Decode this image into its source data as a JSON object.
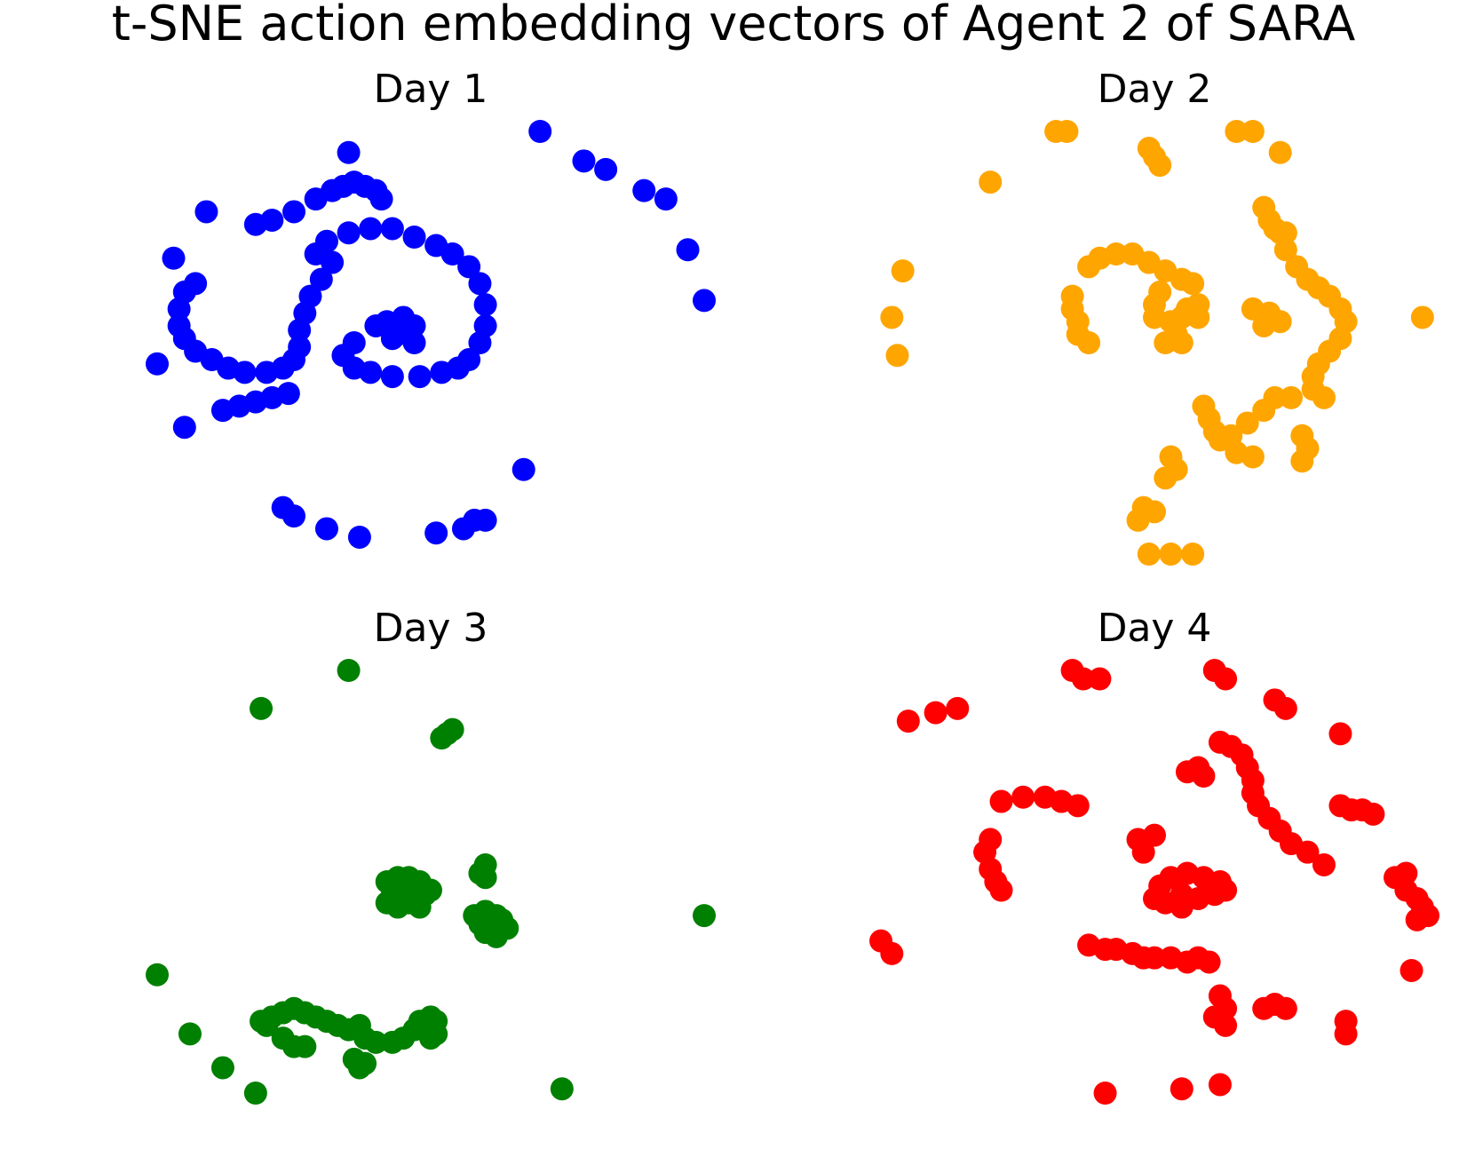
{
  "title": "t-SNE action embedding vectors of Agent 2 of SARA",
  "chart_data": [
    {
      "type": "scatter",
      "title": "Day 1",
      "color": "#0000ff",
      "axes": "off",
      "grid": false,
      "xlim": [
        0,
        100
      ],
      "ylim": [
        0,
        100
      ],
      "points": [
        [
          35,
          95
        ],
        [
          70,
          100
        ],
        [
          78,
          93
        ],
        [
          82,
          91
        ],
        [
          89,
          86
        ],
        [
          93,
          84
        ],
        [
          97,
          72
        ],
        [
          100,
          60
        ],
        [
          9,
          81
        ],
        [
          3,
          70
        ],
        [
          0,
          45
        ],
        [
          5,
          30
        ],
        [
          67,
          20
        ],
        [
          23,
          11
        ],
        [
          25,
          9
        ],
        [
          31,
          6
        ],
        [
          37,
          4
        ],
        [
          51,
          5
        ],
        [
          56,
          6
        ],
        [
          58,
          8
        ],
        [
          60,
          8
        ],
        [
          18,
          78
        ],
        [
          21,
          79
        ],
        [
          25,
          81
        ],
        [
          29,
          84
        ],
        [
          32,
          86
        ],
        [
          34,
          87
        ],
        [
          36,
          88
        ],
        [
          38,
          87
        ],
        [
          40,
          86
        ],
        [
          41,
          84
        ],
        [
          7,
          64
        ],
        [
          5,
          62
        ],
        [
          4,
          58
        ],
        [
          4,
          54
        ],
        [
          5,
          51
        ],
        [
          7,
          48
        ],
        [
          10,
          46
        ],
        [
          13,
          44
        ],
        [
          16,
          43
        ],
        [
          20,
          43
        ],
        [
          23,
          44
        ],
        [
          25,
          46
        ],
        [
          26,
          49
        ],
        [
          26,
          53
        ],
        [
          27,
          57
        ],
        [
          28,
          61
        ],
        [
          30,
          65
        ],
        [
          32,
          69
        ],
        [
          29,
          71
        ],
        [
          31,
          74
        ],
        [
          35,
          76
        ],
        [
          39,
          77
        ],
        [
          43,
          77
        ],
        [
          47,
          75
        ],
        [
          51,
          73
        ],
        [
          54,
          71
        ],
        [
          57,
          68
        ],
        [
          59,
          64
        ],
        [
          60,
          59
        ],
        [
          60,
          54
        ],
        [
          59,
          50
        ],
        [
          57,
          46
        ],
        [
          55,
          44
        ],
        [
          52,
          43
        ],
        [
          48,
          42
        ],
        [
          43,
          42
        ],
        [
          39,
          43
        ],
        [
          36,
          44
        ],
        [
          34,
          47
        ],
        [
          36,
          50
        ],
        [
          40,
          54
        ],
        [
          42,
          55
        ],
        [
          45,
          56
        ],
        [
          47,
          54
        ],
        [
          44,
          52
        ],
        [
          43,
          51
        ],
        [
          47,
          50
        ],
        [
          12,
          34
        ],
        [
          15,
          35
        ],
        [
          18,
          36
        ],
        [
          21,
          37
        ],
        [
          24,
          38
        ]
      ]
    },
    {
      "type": "scatter",
      "title": "Day 2",
      "color": "#ffa500",
      "axes": "off",
      "grid": false,
      "xlim": [
        0,
        100
      ],
      "ylim": [
        0,
        100
      ],
      "points": [
        [
          32,
          100
        ],
        [
          34,
          100
        ],
        [
          49,
          96
        ],
        [
          50,
          94
        ],
        [
          51,
          92
        ],
        [
          65,
          100
        ],
        [
          68,
          100
        ],
        [
          73,
          95
        ],
        [
          20,
          88
        ],
        [
          4,
          67
        ],
        [
          2,
          56
        ],
        [
          3,
          47
        ],
        [
          99,
          56
        ],
        [
          70,
          82
        ],
        [
          71,
          79
        ],
        [
          72,
          77
        ],
        [
          74,
          76
        ],
        [
          38,
          68
        ],
        [
          40,
          70
        ],
        [
          43,
          71
        ],
        [
          46,
          71
        ],
        [
          49,
          69
        ],
        [
          52,
          67
        ],
        [
          55,
          65
        ],
        [
          57,
          64
        ],
        [
          35,
          61
        ],
        [
          35,
          58
        ],
        [
          36,
          55
        ],
        [
          36,
          52
        ],
        [
          38,
          50
        ],
        [
          51,
          62
        ],
        [
          50,
          59
        ],
        [
          50,
          56
        ],
        [
          53,
          55
        ],
        [
          55,
          56
        ],
        [
          56,
          58
        ],
        [
          58,
          59
        ],
        [
          58,
          56
        ],
        [
          54,
          52
        ],
        [
          52,
          50
        ],
        [
          55,
          50
        ],
        [
          73,
          76
        ],
        [
          74,
          72
        ],
        [
          76,
          68
        ],
        [
          78,
          65
        ],
        [
          80,
          63
        ],
        [
          82,
          61
        ],
        [
          84,
          58
        ],
        [
          85,
          55
        ],
        [
          84,
          51
        ],
        [
          82,
          48
        ],
        [
          80,
          45
        ],
        [
          79,
          42
        ],
        [
          79,
          39
        ],
        [
          81,
          37
        ],
        [
          68,
          58
        ],
        [
          71,
          57
        ],
        [
          73,
          55
        ],
        [
          70,
          54
        ],
        [
          59,
          35
        ],
        [
          60,
          32
        ],
        [
          61,
          29
        ],
        [
          62,
          27
        ],
        [
          65,
          24
        ],
        [
          68,
          23
        ],
        [
          64,
          28
        ],
        [
          67,
          31
        ],
        [
          70,
          34
        ],
        [
          72,
          37
        ],
        [
          75,
          37
        ],
        [
          77,
          28
        ],
        [
          78,
          25
        ],
        [
          77,
          22
        ],
        [
          53,
          23
        ],
        [
          54,
          20
        ],
        [
          52,
          18
        ],
        [
          48,
          11
        ],
        [
          50,
          10
        ],
        [
          47,
          8
        ],
        [
          49,
          0
        ],
        [
          53,
          0
        ],
        [
          57,
          0
        ]
      ]
    },
    {
      "type": "scatter",
      "title": "Day 3",
      "color": "#008000",
      "axes": "off",
      "grid": false,
      "xlim": [
        0,
        100
      ],
      "ylim": [
        0,
        100
      ],
      "points": [
        [
          35,
          100
        ],
        [
          19,
          91
        ],
        [
          53,
          85
        ],
        [
          54,
          86
        ],
        [
          52,
          84
        ],
        [
          100,
          42
        ],
        [
          0,
          28
        ],
        [
          6,
          14
        ],
        [
          12,
          6
        ],
        [
          18,
          0
        ],
        [
          74,
          1
        ],
        [
          42,
          50
        ],
        [
          44,
          51
        ],
        [
          46,
          51
        ],
        [
          48,
          50
        ],
        [
          43,
          47
        ],
        [
          45,
          47
        ],
        [
          47,
          47
        ],
        [
          42,
          45
        ],
        [
          44,
          44
        ],
        [
          46,
          45
        ],
        [
          48,
          44
        ],
        [
          49,
          47
        ],
        [
          50,
          48
        ],
        [
          60,
          51
        ],
        [
          60,
          54
        ],
        [
          59,
          52
        ],
        [
          58,
          42
        ],
        [
          60,
          43
        ],
        [
          62,
          42
        ],
        [
          63,
          41
        ],
        [
          59,
          40
        ],
        [
          61,
          39
        ],
        [
          62,
          37
        ],
        [
          60,
          38
        ],
        [
          64,
          39
        ],
        [
          19,
          17
        ],
        [
          21,
          18
        ],
        [
          23,
          19
        ],
        [
          25,
          20
        ],
        [
          27,
          19
        ],
        [
          29,
          18
        ],
        [
          31,
          17
        ],
        [
          33,
          16
        ],
        [
          35,
          15
        ],
        [
          37,
          16
        ],
        [
          38,
          13
        ],
        [
          40,
          12
        ],
        [
          43,
          12
        ],
        [
          45,
          13
        ],
        [
          47,
          15
        ],
        [
          48,
          17
        ],
        [
          50,
          18
        ],
        [
          51,
          17
        ],
        [
          51,
          14
        ],
        [
          50,
          13
        ],
        [
          20,
          16
        ],
        [
          23,
          13
        ],
        [
          25,
          11
        ],
        [
          27,
          11
        ],
        [
          36,
          8
        ],
        [
          37,
          6
        ],
        [
          38,
          7
        ]
      ]
    },
    {
      "type": "scatter",
      "title": "Day 4",
      "color": "#ff0000",
      "axes": "off",
      "grid": false,
      "xlim": [
        0,
        100
      ],
      "ylim": [
        0,
        100
      ],
      "points": [
        [
          35,
          100
        ],
        [
          37,
          98
        ],
        [
          40,
          98
        ],
        [
          61,
          100
        ],
        [
          63,
          98
        ],
        [
          72,
          93
        ],
        [
          74,
          91
        ],
        [
          84,
          85
        ],
        [
          5,
          88
        ],
        [
          10,
          90
        ],
        [
          14,
          91
        ],
        [
          62,
          83
        ],
        [
          64,
          82
        ],
        [
          66,
          80
        ],
        [
          67,
          77
        ],
        [
          68,
          74
        ],
        [
          68,
          71
        ],
        [
          69,
          68
        ],
        [
          71,
          65
        ],
        [
          73,
          62
        ],
        [
          75,
          59
        ],
        [
          78,
          57
        ],
        [
          81,
          54
        ],
        [
          56,
          76
        ],
        [
          58,
          77
        ],
        [
          59,
          75
        ],
        [
          22,
          69
        ],
        [
          26,
          70
        ],
        [
          30,
          70
        ],
        [
          33,
          69
        ],
        [
          36,
          68
        ],
        [
          84,
          68
        ],
        [
          86,
          67
        ],
        [
          88,
          67
        ],
        [
          90,
          66
        ],
        [
          20,
          60
        ],
        [
          19,
          57
        ],
        [
          20,
          53
        ],
        [
          21,
          50
        ],
        [
          22,
          48
        ],
        [
          48,
          57
        ],
        [
          47,
          60
        ],
        [
          50,
          61
        ],
        [
          50,
          46
        ],
        [
          51,
          49
        ],
        [
          53,
          51
        ],
        [
          56,
          52
        ],
        [
          59,
          51
        ],
        [
          62,
          50
        ],
        [
          63,
          48
        ],
        [
          61,
          47
        ],
        [
          58,
          46
        ],
        [
          55,
          47
        ],
        [
          52,
          45
        ],
        [
          55,
          44
        ],
        [
          94,
          51
        ],
        [
          96,
          52
        ],
        [
          96,
          48
        ],
        [
          98,
          46
        ],
        [
          99,
          44
        ],
        [
          100,
          42
        ],
        [
          98,
          41
        ],
        [
          0,
          36
        ],
        [
          2,
          33
        ],
        [
          38,
          35
        ],
        [
          41,
          34
        ],
        [
          43,
          34
        ],
        [
          46,
          33
        ],
        [
          48,
          32
        ],
        [
          50,
          32
        ],
        [
          53,
          32
        ],
        [
          56,
          31
        ],
        [
          58,
          32
        ],
        [
          60,
          31
        ],
        [
          62,
          23
        ],
        [
          63,
          20
        ],
        [
          61,
          18
        ],
        [
          63,
          16
        ],
        [
          70,
          20
        ],
        [
          72,
          21
        ],
        [
          74,
          20
        ],
        [
          97,
          29
        ],
        [
          85,
          17
        ],
        [
          85,
          14
        ],
        [
          41,
          0
        ],
        [
          55,
          1
        ],
        [
          62,
          2
        ]
      ]
    }
  ]
}
